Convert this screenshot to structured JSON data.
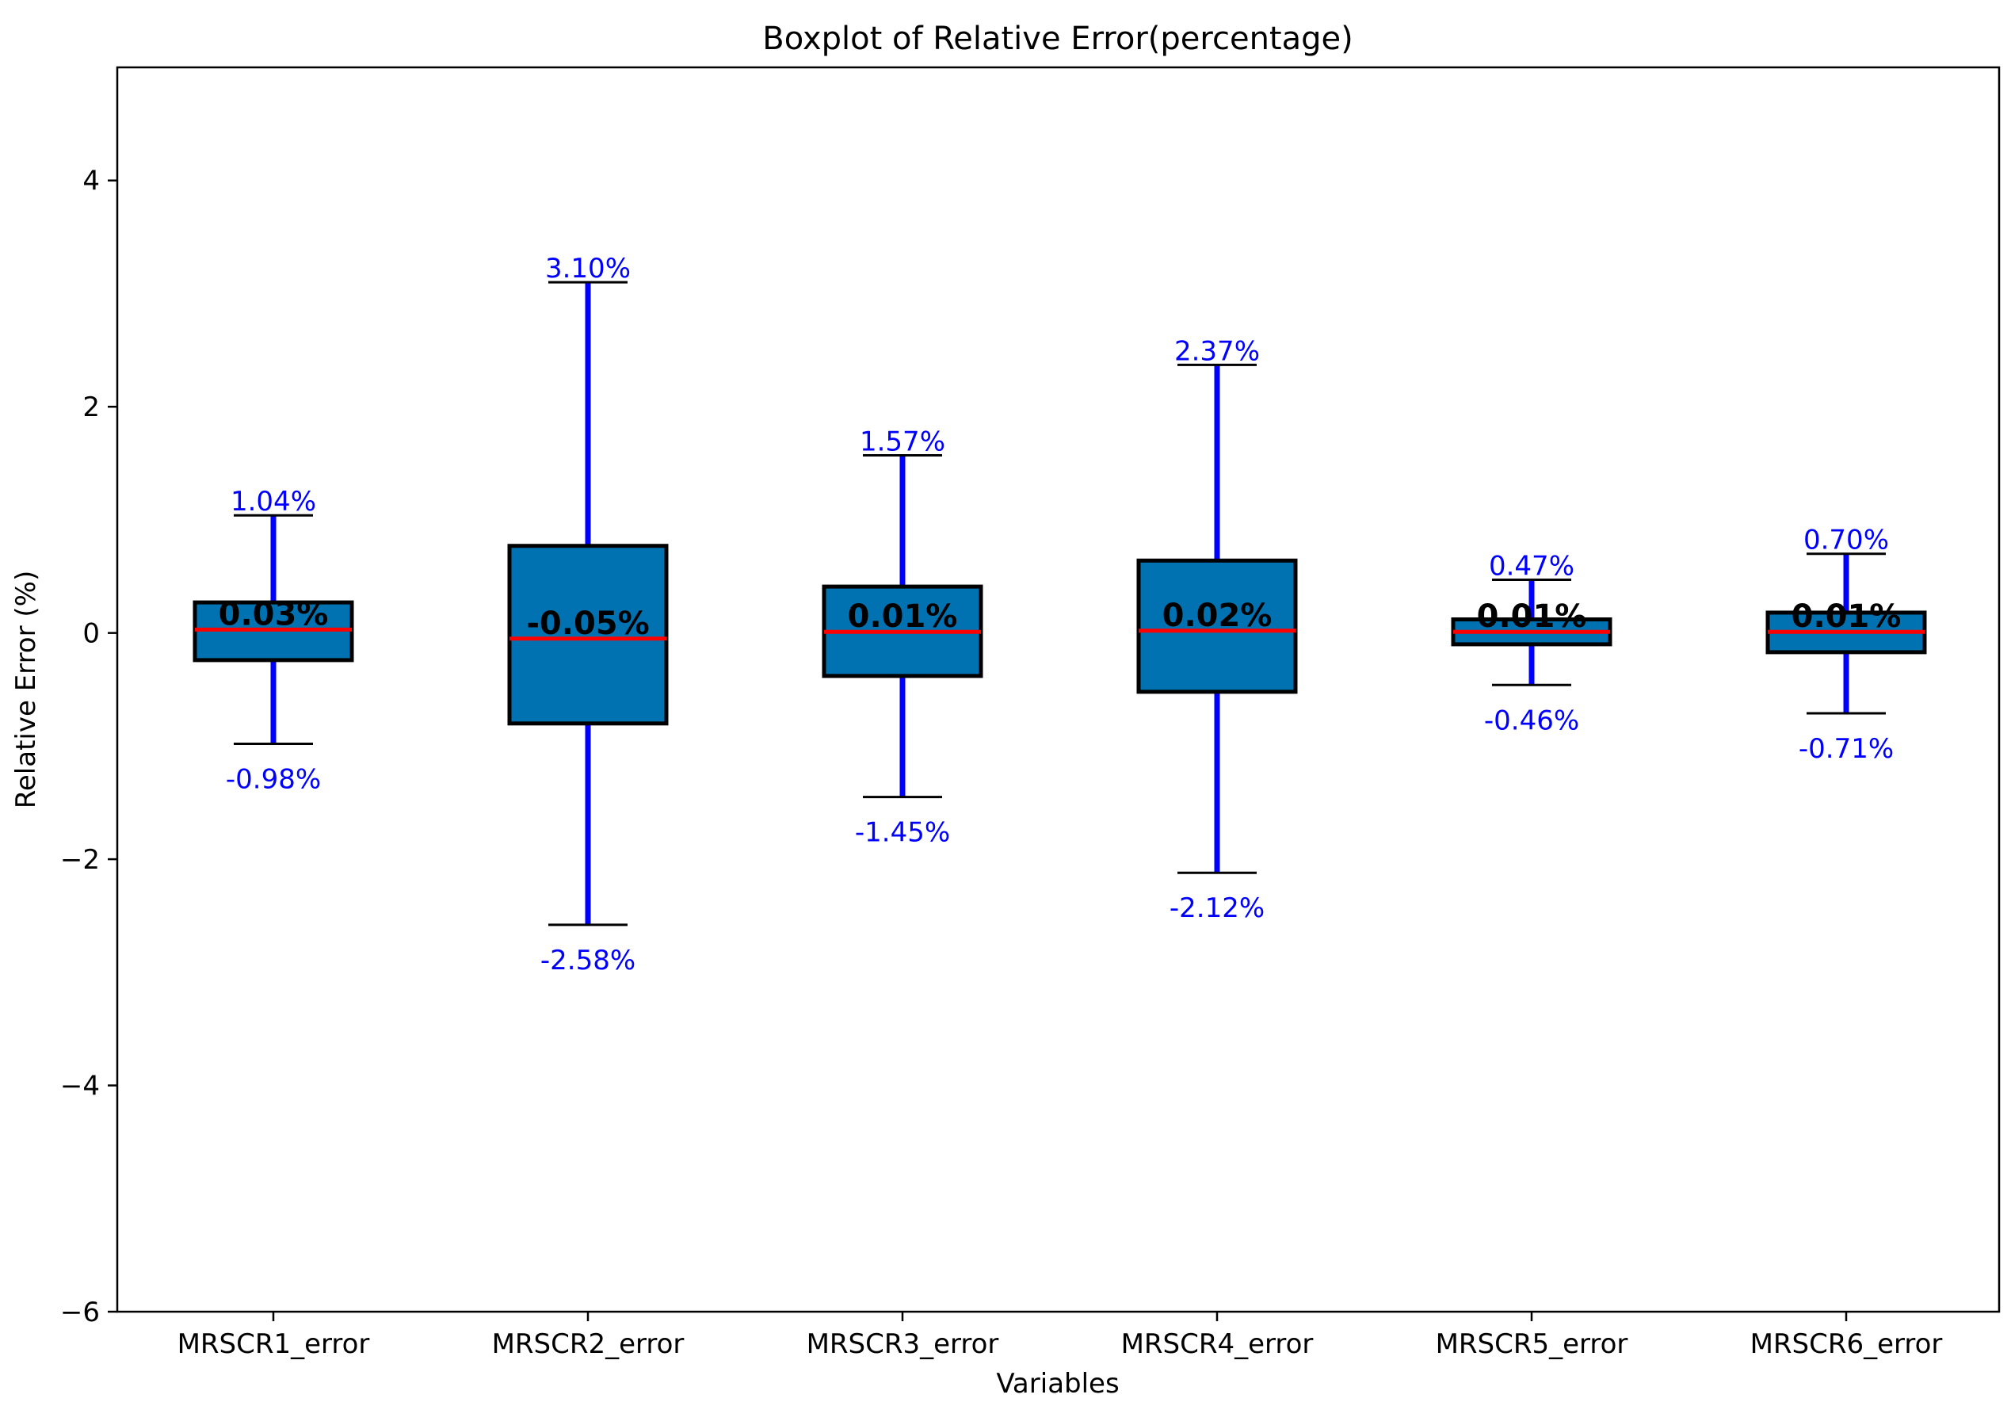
{
  "chart_data": {
    "type": "box",
    "title": "Boxplot of Relative Error(percentage)",
    "xlabel": "Variables",
    "ylabel": "Relative Error (%)",
    "ylim": [
      -6,
      5
    ],
    "yticks": [
      4,
      2,
      0,
      -2,
      -4,
      -6
    ],
    "ytick_labels": [
      "4",
      "2",
      "0",
      "−2",
      "−4",
      "−6"
    ],
    "grid": false,
    "colors": {
      "box_fill": "#0072b2",
      "box_edge": "#000000",
      "median": "#ff0000",
      "whisker": "#0000ff",
      "cap": "#000000",
      "whisker_label": "#0000ff",
      "median_label": "#000000"
    },
    "categories": [
      "MRSCR1_error",
      "MRSCR2_error",
      "MRSCR3_error",
      "MRSCR4_error",
      "MRSCR5_error",
      "MRSCR6_error"
    ],
    "boxes": [
      {
        "whisker_low": -0.98,
        "q1": -0.24,
        "median": 0.03,
        "q3": 0.27,
        "whisker_high": 1.04,
        "label_low": "-0.98%",
        "label_high": "1.04%",
        "label_median": "0.03%"
      },
      {
        "whisker_low": -2.58,
        "q1": -0.8,
        "median": -0.05,
        "q3": 0.77,
        "whisker_high": 3.1,
        "label_low": "-2.58%",
        "label_high": "3.10%",
        "label_median": "-0.05%"
      },
      {
        "whisker_low": -1.45,
        "q1": -0.38,
        "median": 0.01,
        "q3": 0.41,
        "whisker_high": 1.57,
        "label_low": "-1.45%",
        "label_high": "1.57%",
        "label_median": "0.01%"
      },
      {
        "whisker_low": -2.12,
        "q1": -0.52,
        "median": 0.02,
        "q3": 0.64,
        "whisker_high": 2.37,
        "label_low": "-2.12%",
        "label_high": "2.37%",
        "label_median": "0.02%"
      },
      {
        "whisker_low": -0.46,
        "q1": -0.1,
        "median": 0.01,
        "q3": 0.12,
        "whisker_high": 0.47,
        "label_low": "-0.46%",
        "label_high": "0.47%",
        "label_median": "0.01%"
      },
      {
        "whisker_low": -0.71,
        "q1": -0.17,
        "median": 0.01,
        "q3": 0.18,
        "whisker_high": 0.7,
        "label_low": "-0.71%",
        "label_high": "0.70%",
        "label_median": "0.01%"
      }
    ]
  }
}
